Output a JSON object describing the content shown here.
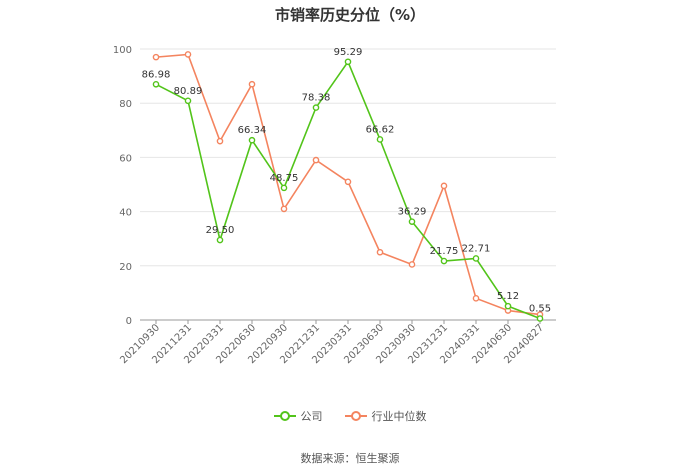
{
  "title": "市销率历史分位（%）",
  "source": "数据来源：恒生聚源",
  "colors": {
    "company": "#52c41a",
    "industry": "#f4845f",
    "grid": "#e6e6e6",
    "axis": "#999999",
    "text": "#666666"
  },
  "legend": [
    {
      "label": "公司",
      "color": "#52c41a"
    },
    {
      "label": "行业中位数",
      "color": "#f4845f"
    }
  ],
  "chart_data": {
    "type": "line",
    "title": "市销率历史分位（%）",
    "xlabel": "",
    "ylabel": "",
    "ylim": [
      0,
      100
    ],
    "yticks": [
      0,
      20,
      40,
      60,
      80,
      100
    ],
    "grid": true,
    "legend_position": "bottom",
    "categories": [
      "20210930",
      "20211231",
      "20220331",
      "20220630",
      "20220930",
      "20221231",
      "20230331",
      "20230630",
      "20230930",
      "20231231",
      "20240331",
      "20240630",
      "20240827"
    ],
    "series": [
      {
        "name": "公司",
        "color": "#52c41a",
        "values": [
          86.98,
          80.89,
          29.5,
          66.34,
          48.75,
          78.38,
          95.29,
          66.62,
          36.29,
          21.75,
          22.71,
          5.12,
          0.55
        ],
        "labels": [
          "86.98",
          "80.89",
          "29.50",
          "66.34",
          "48.75",
          "78.38",
          "95.29",
          "66.62",
          "36.29",
          "21.75",
          "22.71",
          "5.12",
          "0.55"
        ]
      },
      {
        "name": "行业中位数",
        "color": "#f4845f",
        "values": [
          97,
          98,
          66,
          87,
          41,
          59,
          51,
          25,
          20.5,
          49.5,
          8,
          3.5,
          2
        ]
      }
    ]
  }
}
